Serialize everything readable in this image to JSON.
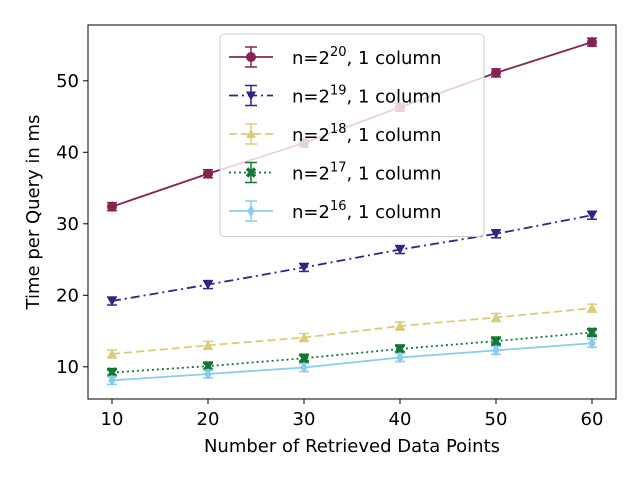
{
  "chart_data": {
    "type": "line",
    "title": "",
    "xlabel": "Number of Retrieved Data Points",
    "ylabel": "Time per Query in ms",
    "xlim": [
      7.5,
      62.5
    ],
    "ylim": [
      5.5,
      57.8
    ],
    "xticks": [
      10,
      20,
      30,
      40,
      50,
      60
    ],
    "yticks": [
      10,
      20,
      30,
      40,
      50
    ],
    "grid": false,
    "legend_placement": "upper center",
    "x": [
      10,
      20,
      30,
      40,
      50,
      60
    ],
    "series": [
      {
        "name": "n=2^20, 1 column",
        "legend_base": "n=2",
        "legend_exp": "20",
        "legend_suffix": ", 1 column",
        "values": [
          32.4,
          37.0,
          41.3,
          46.3,
          51.1,
          55.4
        ],
        "color": "#882255",
        "linestyle": "solid",
        "marker": "circle"
      },
      {
        "name": "n=2^19, 1 column",
        "legend_base": "n=2",
        "legend_exp": "19",
        "legend_suffix": ", 1 column",
        "values": [
          19.2,
          21.5,
          23.9,
          26.4,
          28.6,
          31.2
        ],
        "color": "#332288",
        "linestyle": "dashdot",
        "marker": "triangle-down"
      },
      {
        "name": "n=2^18, 1 column",
        "legend_base": "n=2",
        "legend_exp": "18",
        "legend_suffix": ", 1 column",
        "values": [
          11.8,
          13.0,
          14.1,
          15.7,
          16.9,
          18.2
        ],
        "color": "#DDCC77",
        "linestyle": "dashed",
        "marker": "triangle-up"
      },
      {
        "name": "n=2^17, 1 column",
        "legend_base": "n=2",
        "legend_exp": "17",
        "legend_suffix": ", 1 column",
        "values": [
          9.2,
          10.1,
          11.2,
          12.5,
          13.6,
          14.8
        ],
        "color": "#117733",
        "linestyle": "dotted",
        "marker": "x-filled"
      },
      {
        "name": "n=2^16, 1 column",
        "legend_base": "n=2",
        "legend_exp": "16",
        "legend_suffix": ", 1 column",
        "values": [
          8.1,
          9.0,
          9.9,
          11.3,
          12.3,
          13.3
        ],
        "color": "#88CCEE",
        "linestyle": "solid",
        "marker": "diamond"
      }
    ]
  }
}
